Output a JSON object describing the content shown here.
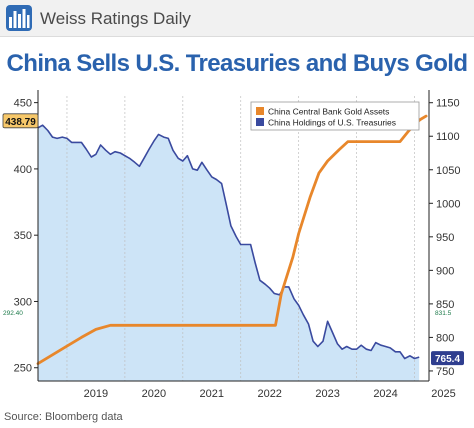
{
  "header": {
    "brand": "Weiss Ratings Daily",
    "logo_icon": "bar-chart-logo-icon",
    "background_color": "#f1f1f1"
  },
  "title": "China Sells U.S. Treasuries and Buys Gold",
  "source": "Source: Bloomberg data",
  "chart_data": {
    "type": "line",
    "x_tick_labels": [
      "2019",
      "2020",
      "2021",
      "2022",
      "2023",
      "2024",
      "2025"
    ],
    "xlim": [
      2018.5,
      2025.25
    ],
    "left_axis": {
      "ylim": [
        240,
        455
      ],
      "ticks": [
        250,
        300,
        350,
        400,
        450
      ],
      "series": "treasuries"
    },
    "right_axis": {
      "ylim": [
        735,
        1160
      ],
      "ticks": [
        750,
        800,
        850,
        900,
        950,
        1000,
        1050,
        1100,
        1150
      ],
      "series": "gold"
    },
    "grid": "vertical dashed at year boundaries",
    "legend_position": "top-right",
    "series": [
      {
        "id": "gold",
        "name": "China Central Bank Gold Assets",
        "axis": "right",
        "color": "#e8872b",
        "style": "line",
        "x": [
          2018.5,
          2018.75,
          2019.0,
          2019.25,
          2019.5,
          2019.75,
          2020.0,
          2021.0,
          2022.0,
          2022.6,
          2022.7,
          2022.9,
          2023.0,
          2023.2,
          2023.35,
          2023.5,
          2023.7,
          2023.85,
          2024.0,
          2024.4,
          2024.6,
          2024.75,
          2024.9,
          2025.0,
          2025.1,
          2025.2
        ],
        "values": [
          761,
          774,
          787,
          800,
          812,
          818,
          818,
          818,
          818,
          818,
          865,
          920,
          955,
          1010,
          1045,
          1063,
          1080,
          1092,
          1092,
          1092,
          1092,
          1092,
          1108,
          1118,
          1125,
          1130
        ]
      },
      {
        "id": "treasuries",
        "name": "China Holdings of U.S. Treasuries",
        "axis": "left",
        "color": "#3a4a9f",
        "fill": "#cde4f7",
        "style": "area",
        "x": [
          2018.5,
          2018.58,
          2018.67,
          2018.75,
          2018.83,
          2018.92,
          2019.0,
          2019.08,
          2019.17,
          2019.25,
          2019.33,
          2019.42,
          2019.5,
          2019.58,
          2019.67,
          2019.75,
          2019.83,
          2019.92,
          2020.0,
          2020.08,
          2020.17,
          2020.25,
          2020.33,
          2020.42,
          2020.5,
          2020.58,
          2020.67,
          2020.75,
          2020.83,
          2020.92,
          2021.0,
          2021.08,
          2021.17,
          2021.25,
          2021.33,
          2021.42,
          2021.5,
          2021.58,
          2021.67,
          2021.75,
          2021.83,
          2021.92,
          2022.0,
          2022.08,
          2022.17,
          2022.25,
          2022.33,
          2022.42,
          2022.5,
          2022.58,
          2022.67,
          2022.75,
          2022.83,
          2022.92,
          2023.0,
          2023.08,
          2023.17,
          2023.25,
          2023.33,
          2023.42,
          2023.5,
          2023.58,
          2023.67,
          2023.75,
          2023.83,
          2023.92,
          2024.0,
          2024.08,
          2024.17,
          2024.25,
          2024.33,
          2024.42,
          2024.5,
          2024.58,
          2024.67,
          2024.75,
          2024.83,
          2024.92,
          2025.0,
          2025.08
        ],
        "values": [
          431,
          433,
          429,
          424,
          423,
          424,
          423,
          420,
          420,
          420,
          415,
          409,
          411,
          418,
          414,
          411,
          413,
          412,
          410,
          408,
          405,
          402,
          408,
          415,
          421,
          426,
          424,
          423,
          414,
          408,
          406,
          410,
          400,
          399,
          405,
          399,
          394,
          392,
          389,
          373,
          357,
          349,
          343,
          343,
          343,
          329,
          316,
          313,
          310,
          306,
          305,
          311,
          311,
          302,
          297,
          290,
          283,
          270,
          266,
          270,
          285,
          277,
          268,
          264,
          266,
          264,
          264,
          267,
          264,
          263,
          269,
          267,
          266,
          265,
          262,
          262,
          257,
          259,
          257,
          258
        ]
      }
    ],
    "value_labels": {
      "treasuries_start": "438.79",
      "treasuries_end": "765.4",
      "left_small": "292.40",
      "right_small": "831.5"
    }
  }
}
